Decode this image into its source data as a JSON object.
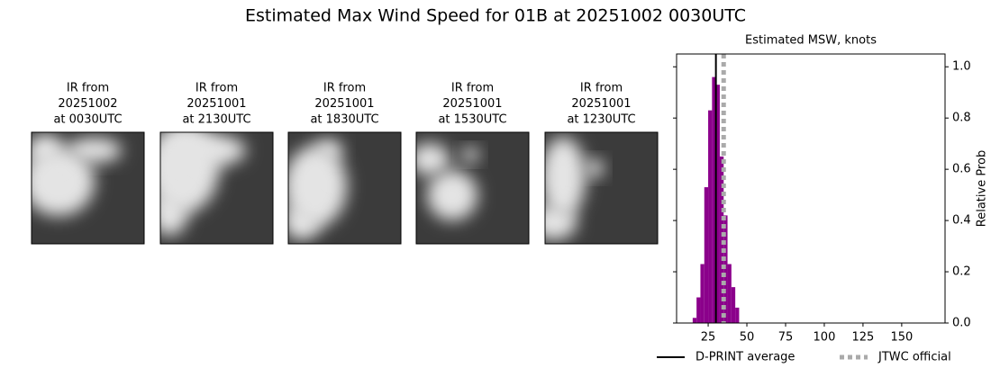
{
  "title": "Estimated Max Wind Speed for 01B at 20251002 0030UTC",
  "images": [
    {
      "caption": [
        "IR from",
        "20251002",
        "at 0030UTC"
      ]
    },
    {
      "caption": [
        "IR from",
        "20251001",
        "at 2130UTC"
      ]
    },
    {
      "caption": [
        "IR from",
        "20251001",
        "at 1830UTC"
      ]
    },
    {
      "caption": [
        "IR from",
        "20251001",
        "at 1530UTC"
      ]
    },
    {
      "caption": [
        "IR from",
        "20251001",
        "at 1230UTC"
      ]
    }
  ],
  "chart_data": {
    "type": "histogram",
    "title": "Estimated MSW, knots",
    "y_label": "Relative Prob",
    "bins": [
      15,
      17.5,
      20,
      22.5,
      25,
      27.5,
      30,
      32.5,
      35,
      37.5,
      40,
      42.5,
      45
    ],
    "values": [
      0.02,
      0.1,
      0.23,
      0.53,
      0.83,
      0.96,
      0.93,
      0.65,
      0.42,
      0.23,
      0.14,
      0.06
    ],
    "color": "#8b008b",
    "xlim": [
      4.6,
      178
    ],
    "xticks": [
      25,
      50,
      75,
      100,
      125,
      150
    ],
    "ylim": [
      0,
      1.05
    ],
    "yticks": [
      {
        "value": 0,
        "label": "0.0"
      },
      {
        "value": 0.2,
        "label": "0.2"
      },
      {
        "value": 0.4,
        "label": "0.4"
      },
      {
        "value": 0.6,
        "label": "0.6"
      },
      {
        "value": 0.8,
        "label": "0.8"
      },
      {
        "value": 1,
        "label": "1.0"
      }
    ],
    "vlines": [
      {
        "name": "D-PRINT average",
        "value": 30,
        "color": "#000000",
        "style": "solid"
      },
      {
        "name": "JTWC official",
        "value": 35,
        "color": "#aaaaaa",
        "style": "dotted"
      }
    ],
    "legend": "below"
  }
}
